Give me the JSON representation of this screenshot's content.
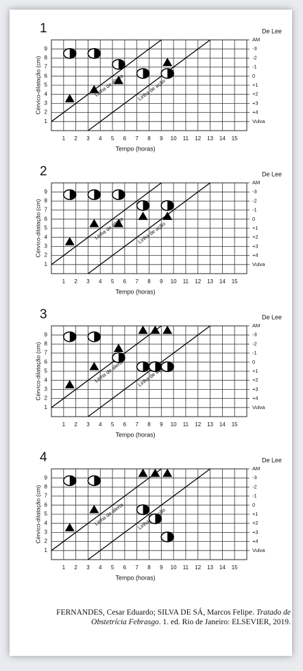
{
  "chart_data": [
    {
      "type": "scatter",
      "title": "1",
      "xlabel": "Tempo (horas)",
      "ylabel": "Cérvico-dilatação (cm)",
      "y2label": "De Lee",
      "xlim": [
        0,
        16
      ],
      "ylim": [
        0,
        10
      ],
      "y2lim": [
        6,
        -4
      ],
      "xticks": [
        1,
        2,
        3,
        4,
        5,
        6,
        7,
        8,
        9,
        10,
        11,
        12,
        13,
        14,
        15
      ],
      "yticks": [
        1,
        2,
        3,
        4,
        5,
        6,
        7,
        8,
        9
      ],
      "y2ticks": [
        {
          "value": -4,
          "label": "AM"
        },
        -3,
        -2,
        -1,
        0,
        {
          "value": 1,
          "label": "+1"
        },
        {
          "value": 2,
          "label": "+2"
        },
        {
          "value": 3,
          "label": "+3"
        },
        {
          "value": 4,
          "label": "+4"
        },
        {
          "value": 5,
          "label": "Vulva"
        }
      ],
      "grid": true,
      "lines": [
        {
          "label": "Linha de alerta",
          "x": [
            0,
            9
          ],
          "values": [
            1,
            10
          ]
        },
        {
          "label": "Linha de ação",
          "x": [
            3,
            13
          ],
          "values": [
            0,
            10
          ]
        }
      ],
      "series": [
        {
          "marker": "triangle",
          "color": "#000000",
          "x": [
            1.5,
            3.5,
            5.5,
            7.5,
            9.5
          ],
          "values": [
            3.5,
            4.5,
            5.5,
            6.3,
            7.5
          ]
        },
        {
          "marker": "circle",
          "axis": "y2",
          "color": "#000000",
          "x": [
            1.5,
            3.5,
            5.5,
            7.5,
            9.5
          ],
          "values": [
            -2.5,
            -2.5,
            -1.3,
            -0.3,
            -0.3
          ]
        }
      ]
    },
    {
      "type": "scatter",
      "title": "2",
      "xlabel": "Tempo (horas)",
      "ylabel": "Cérvico-dilatação (cm)",
      "y2label": "De Lee",
      "xlim": [
        0,
        16
      ],
      "ylim": [
        0,
        10
      ],
      "y2lim": [
        6,
        -4
      ],
      "xticks": [
        1,
        2,
        3,
        4,
        5,
        6,
        7,
        8,
        9,
        10,
        11,
        12,
        13,
        14,
        15
      ],
      "yticks": [
        1,
        2,
        3,
        4,
        5,
        6,
        7,
        8,
        9
      ],
      "y2ticks": [
        {
          "value": -4,
          "label": "AM"
        },
        -3,
        -2,
        -1,
        0,
        {
          "value": 1,
          "label": "+1"
        },
        {
          "value": 2,
          "label": "+2"
        },
        {
          "value": 3,
          "label": "+3"
        },
        {
          "value": 4,
          "label": "+4"
        },
        {
          "value": 5,
          "label": "Vulva"
        }
      ],
      "grid": true,
      "lines": [
        {
          "label": "Linha de alerta",
          "x": [
            0,
            9
          ],
          "values": [
            1,
            10
          ]
        },
        {
          "label": "Linha de ação",
          "x": [
            3,
            13
          ],
          "values": [
            0,
            10
          ]
        }
      ],
      "series": [
        {
          "marker": "triangle",
          "color": "#000000",
          "x": [
            1.5,
            3.5,
            5.5,
            7.5,
            9.5
          ],
          "values": [
            3.5,
            5.5,
            5.5,
            6.3,
            6.3
          ]
        },
        {
          "marker": "circle",
          "axis": "y2",
          "color": "#000000",
          "x": [
            1.5,
            3.5,
            5.5,
            7.5,
            9.5
          ],
          "values": [
            -2.7,
            -2.7,
            -2.7,
            -1.5,
            -1.5
          ]
        }
      ]
    },
    {
      "type": "scatter",
      "title": "3",
      "xlabel": "Tempo (horas)",
      "ylabel": "Cérvico-dilatação (cm)",
      "y2label": "De Lee",
      "xlim": [
        0,
        16
      ],
      "ylim": [
        0,
        10
      ],
      "y2lim": [
        6,
        -4
      ],
      "xticks": [
        1,
        2,
        3,
        4,
        5,
        6,
        7,
        8,
        9,
        10,
        11,
        12,
        13,
        14,
        15
      ],
      "yticks": [
        1,
        2,
        3,
        4,
        5,
        6,
        7,
        8,
        9
      ],
      "y2ticks": [
        {
          "value": -4,
          "label": "AM"
        },
        -3,
        -2,
        -1,
        0,
        {
          "value": 1,
          "label": "+1"
        },
        {
          "value": 2,
          "label": "+2"
        },
        {
          "value": 3,
          "label": "+3"
        },
        {
          "value": 4,
          "label": "+4"
        },
        {
          "value": 5,
          "label": "Vulva"
        }
      ],
      "grid": true,
      "lines": [
        {
          "label": "Linha de alerta",
          "x": [
            0,
            9
          ],
          "values": [
            1,
            10
          ]
        },
        {
          "label": "Linha de ação",
          "x": [
            3,
            13
          ],
          "values": [
            0,
            10
          ]
        }
      ],
      "series": [
        {
          "marker": "triangle",
          "color": "#000000",
          "x": [
            1.5,
            3.5,
            5.5,
            7.5,
            8.5,
            9.5
          ],
          "values": [
            3.5,
            5.5,
            7.5,
            9.5,
            9.5,
            9.5
          ]
        },
        {
          "marker": "circle",
          "axis": "y2",
          "color": "#000000",
          "x": [
            1.5,
            3.5,
            5.5,
            7.5,
            8.5,
            9.5
          ],
          "values": [
            -2.8,
            -2.8,
            -0.5,
            0.5,
            0.5,
            0.5
          ]
        }
      ]
    },
    {
      "type": "scatter",
      "title": "4",
      "xlabel": "Tempo (horas)",
      "ylabel": "Cérvico-dilatação (cm)",
      "y2label": "De Lee",
      "xlim": [
        0,
        16
      ],
      "ylim": [
        0,
        10
      ],
      "y2lim": [
        6,
        -4
      ],
      "xticks": [
        1,
        2,
        3,
        4,
        5,
        6,
        7,
        8,
        9,
        10,
        11,
        12,
        13,
        14,
        15
      ],
      "yticks": [
        1,
        2,
        3,
        4,
        5,
        6,
        7,
        8,
        9
      ],
      "y2ticks": [
        {
          "value": -4,
          "label": "AM"
        },
        -3,
        -2,
        -1,
        0,
        {
          "value": 1,
          "label": "+1"
        },
        {
          "value": 2,
          "label": "+2"
        },
        {
          "value": 3,
          "label": "+3"
        },
        {
          "value": 4,
          "label": "+4"
        },
        {
          "value": 5,
          "label": "Vulva"
        }
      ],
      "grid": true,
      "lines": [
        {
          "label": "Linha de alerta",
          "x": [
            0,
            9
          ],
          "values": [
            1,
            10
          ]
        },
        {
          "label": "Linha de ação",
          "x": [
            3,
            13
          ],
          "values": [
            0,
            10
          ]
        }
      ],
      "series": [
        {
          "marker": "triangle",
          "color": "#000000",
          "x": [
            1.5,
            3.5,
            7.5,
            8.5,
            9.5
          ],
          "values": [
            3.5,
            5.5,
            9.5,
            9.5,
            9.5
          ]
        },
        {
          "marker": "circle",
          "axis": "y2",
          "color": "#000000",
          "x": [
            1.5,
            3.5,
            7.5,
            8.5,
            9.5
          ],
          "values": [
            -2.7,
            -2.7,
            0.5,
            1.5,
            3.5
          ]
        }
      ]
    }
  ],
  "caption": {
    "authors": "FERNANDES, Cesar Eduardo; SILVA DE SÁ, Marcos Felipe.",
    "book": "Tratado de Obstetrícia Febrasgo",
    "edition": ". 1. ed. Rio de Janeiro: ELSEVIER, 2019."
  }
}
